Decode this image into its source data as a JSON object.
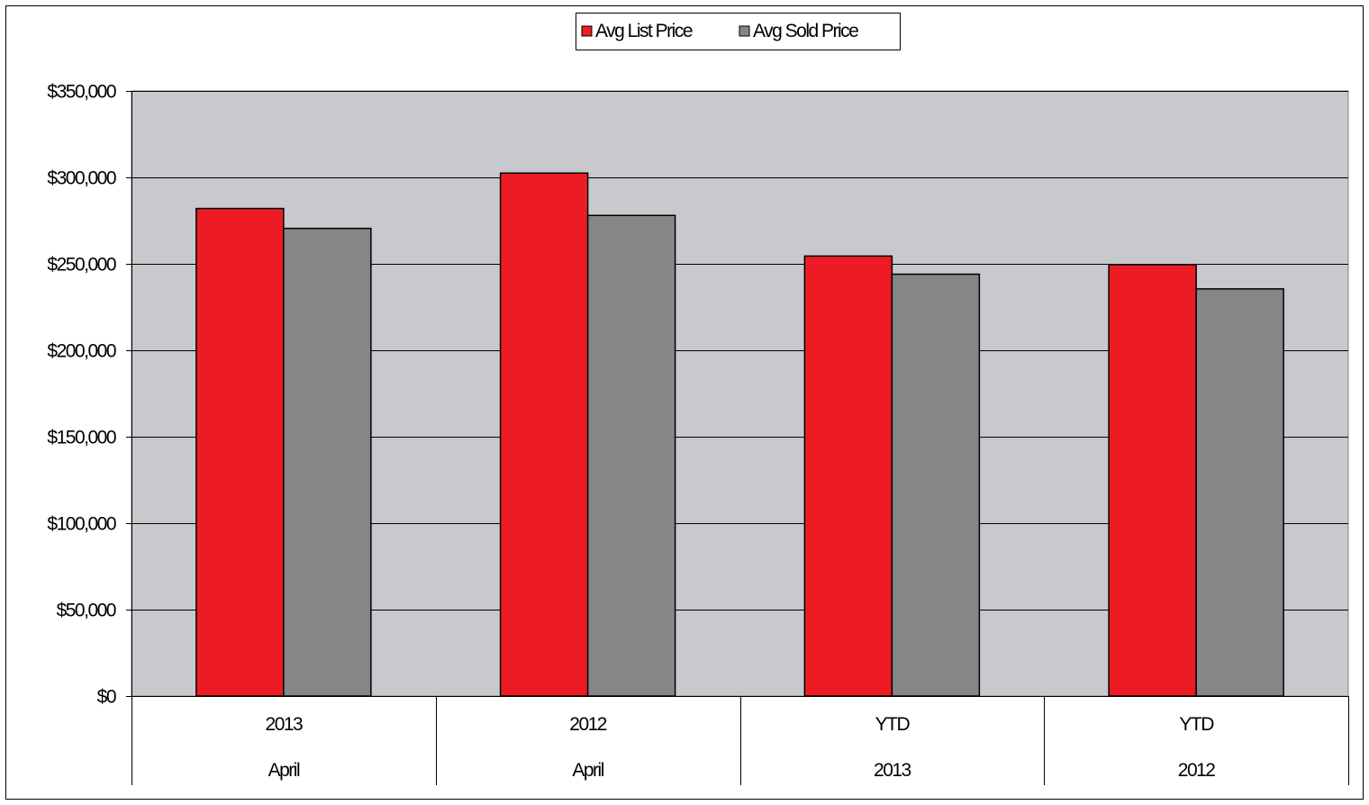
{
  "chart_data": {
    "type": "bar",
    "legend": {
      "placement": "top-center",
      "entries": [
        "Avg List Price",
        "Avg Sold Price"
      ]
    },
    "categories": [
      {
        "top": "2013",
        "bottom": "April"
      },
      {
        "top": "2012",
        "bottom": "April"
      },
      {
        "top": "YTD",
        "bottom": "2013"
      },
      {
        "top": "YTD",
        "bottom": "2012"
      }
    ],
    "series": [
      {
        "name": "Avg List Price",
        "color": "#ED1C24",
        "values": [
          282000,
          302500,
          254500,
          249500
        ]
      },
      {
        "name": "Avg Sold Price",
        "color": "#868686",
        "values": [
          270500,
          278000,
          244000,
          235500
        ]
      }
    ],
    "ylim": [
      0,
      350000
    ],
    "yticks": [
      0,
      50000,
      100000,
      150000,
      200000,
      250000,
      300000,
      350000
    ],
    "ytick_labels": [
      "$0",
      "$50,000",
      "$100,000",
      "$150,000",
      "$200,000",
      "$250,000",
      "$300,000",
      "$350,000"
    ],
    "grid": true,
    "plot_background": "#C8C9CD"
  }
}
